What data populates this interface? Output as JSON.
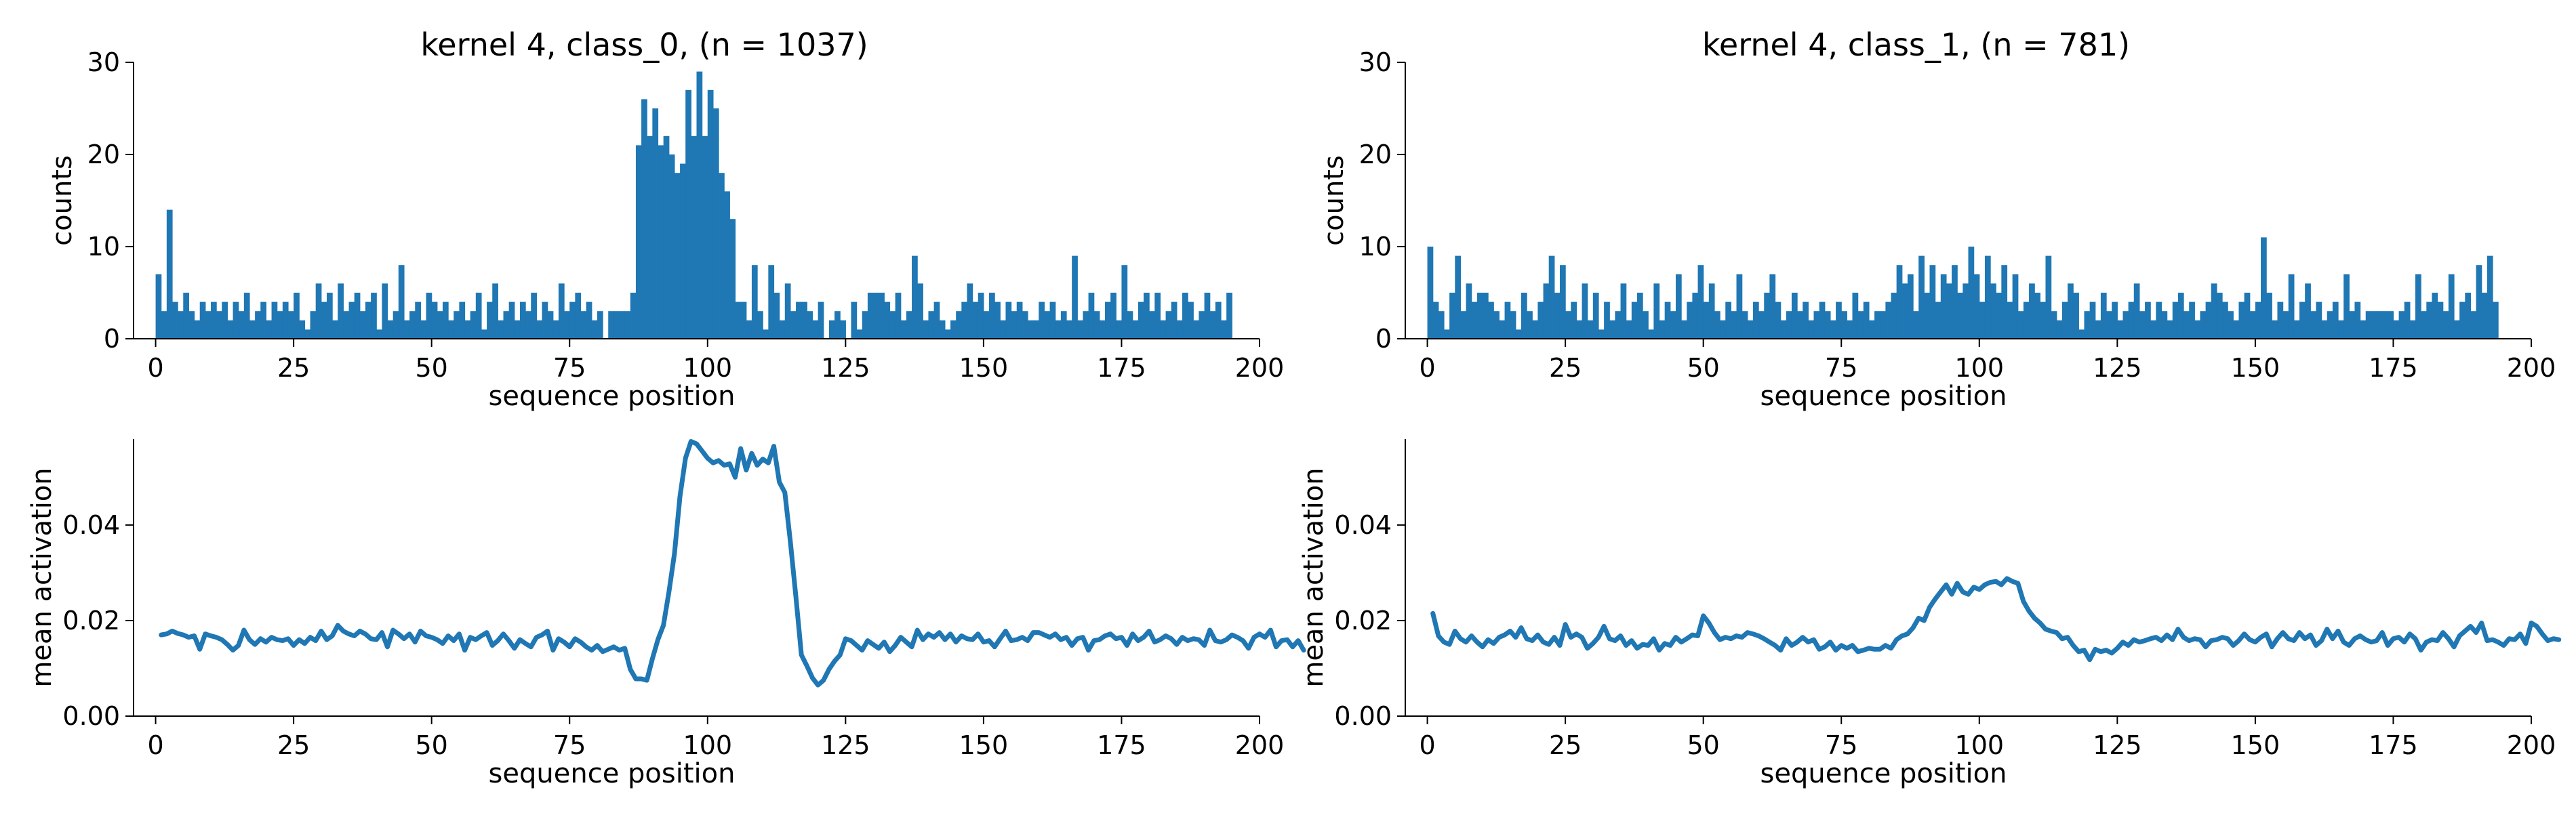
{
  "chart_data": [
    {
      "type": "bar",
      "title": "kernel 4, class_0, (n = 1037)",
      "xlabel": "sequence position",
      "ylabel": "counts",
      "xlim": [
        -4,
        200
      ],
      "ylim": [
        0,
        30
      ],
      "xticks": [
        "0",
        "25",
        "50",
        "75",
        "100",
        "125",
        "150",
        "175",
        "200"
      ],
      "yticks": [
        "0",
        "10",
        "20",
        "30"
      ],
      "grid": false,
      "color": "#1f77b4",
      "bin_start": 0,
      "bin_width": 1,
      "values": [
        7,
        3,
        14,
        4,
        3,
        5,
        3,
        2,
        4,
        3,
        4,
        3,
        4,
        2,
        4,
        3,
        5,
        2,
        3,
        4,
        2,
        4,
        3,
        4,
        3,
        5,
        2,
        1,
        3,
        6,
        4,
        5,
        2,
        6,
        3,
        4,
        5,
        3,
        4,
        5,
        1,
        6,
        2,
        3,
        8,
        2,
        3,
        4,
        2,
        5,
        4,
        3,
        4,
        2,
        3,
        4,
        2,
        3,
        5,
        1,
        4,
        6,
        2,
        3,
        4,
        2,
        4,
        3,
        5,
        2,
        4,
        3,
        2,
        6,
        3,
        4,
        5,
        3,
        4,
        2,
        3,
        0,
        3,
        3,
        3,
        3,
        5,
        21,
        26,
        22,
        25,
        21,
        22,
        20,
        18,
        19,
        27,
        22,
        29,
        22,
        27,
        25,
        18,
        16,
        13,
        4,
        4,
        2,
        8,
        3,
        1,
        8,
        5,
        2,
        6,
        3,
        4,
        4,
        3,
        2,
        4,
        0,
        2,
        3,
        2,
        0,
        4,
        1,
        3,
        5,
        5,
        5,
        4,
        3,
        5,
        2,
        3,
        9,
        6,
        2,
        3,
        4,
        2,
        1,
        2,
        3,
        4,
        6,
        4,
        5,
        3,
        5,
        4,
        2,
        4,
        3,
        4,
        3,
        2,
        2,
        4,
        3,
        4,
        2,
        3,
        2,
        9,
        2,
        3,
        5,
        3,
        2,
        4,
        5,
        2,
        8,
        3,
        2,
        4,
        5,
        3,
        5,
        2,
        3,
        4,
        2,
        5,
        4,
        2,
        3,
        5,
        3,
        4,
        2,
        5
      ]
    },
    {
      "type": "bar",
      "title": "kernel 4, class_1, (n = 781)",
      "xlabel": "sequence position",
      "ylabel": "counts",
      "xlim": [
        -4,
        200
      ],
      "ylim": [
        0,
        30
      ],
      "xticks": [
        "0",
        "25",
        "50",
        "75",
        "100",
        "125",
        "150",
        "175",
        "200"
      ],
      "yticks": [
        "0",
        "10",
        "20",
        "30"
      ],
      "grid": false,
      "color": "#1f77b4",
      "bin_start": 0,
      "bin_width": 1,
      "values": [
        10,
        4,
        3,
        1,
        5,
        9,
        3,
        6,
        4,
        5,
        5,
        4,
        3,
        2,
        4,
        3,
        1,
        5,
        3,
        2,
        4,
        6,
        9,
        5,
        8,
        3,
        4,
        2,
        6,
        2,
        5,
        1,
        4,
        2,
        3,
        6,
        2,
        4,
        5,
        3,
        1,
        6,
        2,
        4,
        3,
        7,
        2,
        4,
        5,
        8,
        4,
        6,
        3,
        2,
        4,
        3,
        7,
        3,
        2,
        4,
        3,
        5,
        7,
        4,
        2,
        3,
        5,
        3,
        4,
        2,
        3,
        4,
        3,
        2,
        4,
        3,
        2,
        5,
        3,
        4,
        2,
        3,
        3,
        4,
        5,
        8,
        6,
        7,
        3,
        9,
        5,
        8,
        4,
        7,
        6,
        8,
        5,
        6,
        10,
        7,
        4,
        9,
        6,
        5,
        8,
        4,
        7,
        3,
        4,
        6,
        5,
        4,
        9,
        3,
        2,
        4,
        6,
        5,
        1,
        3,
        4,
        2,
        5,
        3,
        4,
        2,
        3,
        4,
        6,
        3,
        4,
        2,
        4,
        3,
        2,
        4,
        5,
        3,
        4,
        2,
        3,
        4,
        6,
        5,
        4,
        3,
        2,
        4,
        5,
        3,
        4,
        11,
        5,
        2,
        4,
        3,
        7,
        2,
        4,
        6,
        3,
        4,
        2,
        3,
        4,
        2,
        7,
        3,
        4,
        2,
        3,
        3,
        3,
        3,
        3,
        2,
        3,
        4,
        2,
        7,
        3,
        4,
        5,
        4,
        3,
        7,
        2,
        4,
        5,
        3,
        8,
        5,
        9,
        4
      ]
    },
    {
      "type": "line",
      "title": "",
      "xlabel": "sequence position",
      "ylabel": "mean activation",
      "xlim": [
        -4,
        200
      ],
      "ylim": [
        0,
        0.058
      ],
      "xticks": [
        "0",
        "25",
        "50",
        "75",
        "100",
        "125",
        "150",
        "175",
        "200"
      ],
      "yticks": [
        "0.00",
        "0.02",
        "0.04"
      ],
      "grid": false,
      "color": "#1f77b4",
      "x_start": 1,
      "x_step": 1,
      "values": [
        0.017,
        0.0172,
        0.0178,
        0.0173,
        0.017,
        0.0165,
        0.0168,
        0.014,
        0.0172,
        0.0168,
        0.0165,
        0.016,
        0.015,
        0.0138,
        0.0148,
        0.018,
        0.016,
        0.015,
        0.0162,
        0.0155,
        0.0165,
        0.016,
        0.0158,
        0.0162,
        0.0148,
        0.016,
        0.0152,
        0.0165,
        0.0158,
        0.0178,
        0.016,
        0.0168,
        0.019,
        0.0178,
        0.0172,
        0.0168,
        0.0178,
        0.0172,
        0.0162,
        0.016,
        0.0175,
        0.0145,
        0.018,
        0.0172,
        0.0162,
        0.0172,
        0.0155,
        0.0178,
        0.0168,
        0.0165,
        0.016,
        0.0152,
        0.0168,
        0.0158,
        0.0172,
        0.0138,
        0.0165,
        0.016,
        0.0168,
        0.0175,
        0.0148,
        0.0158,
        0.0172,
        0.0158,
        0.0142,
        0.016,
        0.0152,
        0.0145,
        0.0165,
        0.017,
        0.0178,
        0.0138,
        0.0162,
        0.0155,
        0.0145,
        0.0162,
        0.0155,
        0.0145,
        0.0138,
        0.0148,
        0.0135,
        0.014,
        0.0145,
        0.0138,
        0.0142,
        0.0098,
        0.0078,
        0.0078,
        0.0075,
        0.012,
        0.016,
        0.019,
        0.026,
        0.034,
        0.046,
        0.054,
        0.0575,
        0.057,
        0.0555,
        0.054,
        0.053,
        0.0535,
        0.0525,
        0.0528,
        0.05,
        0.056,
        0.0515,
        0.055,
        0.0525,
        0.0538,
        0.053,
        0.0565,
        0.049,
        0.0468,
        0.0365,
        0.025,
        0.0128,
        0.0105,
        0.008,
        0.0065,
        0.0075,
        0.0098,
        0.0115,
        0.0128,
        0.0162,
        0.0158,
        0.0148,
        0.0138,
        0.0158,
        0.015,
        0.0142,
        0.0155,
        0.0135,
        0.0148,
        0.0165,
        0.0155,
        0.0145,
        0.018,
        0.016,
        0.0172,
        0.0165,
        0.0175,
        0.016,
        0.0172,
        0.0155,
        0.0168,
        0.0162,
        0.016,
        0.0172,
        0.0155,
        0.0158,
        0.0145,
        0.0162,
        0.0178,
        0.0158,
        0.016,
        0.0165,
        0.0158,
        0.0175,
        0.0175,
        0.017,
        0.0165,
        0.0172,
        0.016,
        0.0165,
        0.0148,
        0.0162,
        0.0165,
        0.0138,
        0.0158,
        0.016,
        0.0168,
        0.0172,
        0.0162,
        0.0165,
        0.0148,
        0.0172,
        0.0158,
        0.0165,
        0.0178,
        0.0155,
        0.016,
        0.0168,
        0.0162,
        0.015,
        0.0165,
        0.0158,
        0.0162,
        0.016,
        0.0148,
        0.018,
        0.0158,
        0.0155,
        0.016,
        0.017,
        0.0165,
        0.0158,
        0.0142,
        0.0165,
        0.0172,
        0.0165,
        0.018,
        0.0145,
        0.0158,
        0.016,
        0.0145,
        0.0158,
        0.0138
      ]
    },
    {
      "type": "line",
      "title": "",
      "xlabel": "sequence position",
      "ylabel": "mean activation",
      "xlim": [
        -4,
        200
      ],
      "ylim": [
        0,
        0.058
      ],
      "xticks": [
        "0",
        "25",
        "50",
        "75",
        "100",
        "125",
        "150",
        "175",
        "200"
      ],
      "yticks": [
        "0.00",
        "0.02",
        "0.04"
      ],
      "grid": false,
      "color": "#1f77b4",
      "x_start": 1,
      "x_step": 1,
      "values": [
        0.0215,
        0.0168,
        0.0155,
        0.015,
        0.0178,
        0.0162,
        0.0155,
        0.0168,
        0.0155,
        0.0145,
        0.016,
        0.0152,
        0.0165,
        0.017,
        0.0178,
        0.0165,
        0.0185,
        0.0162,
        0.0158,
        0.017,
        0.0155,
        0.015,
        0.0165,
        0.0148,
        0.0192,
        0.0165,
        0.0172,
        0.0165,
        0.0142,
        0.0152,
        0.0165,
        0.0188,
        0.0162,
        0.0158,
        0.0168,
        0.0148,
        0.0158,
        0.0142,
        0.015,
        0.0148,
        0.0162,
        0.0138,
        0.0152,
        0.0148,
        0.0165,
        0.0155,
        0.0162,
        0.017,
        0.0168,
        0.021,
        0.0195,
        0.0175,
        0.016,
        0.0165,
        0.0162,
        0.0168,
        0.0165,
        0.0175,
        0.0172,
        0.0168,
        0.0162,
        0.0155,
        0.0148,
        0.0138,
        0.0162,
        0.0148,
        0.0155,
        0.0165,
        0.0155,
        0.016,
        0.014,
        0.0145,
        0.0155,
        0.0138,
        0.0148,
        0.0142,
        0.0148,
        0.0135,
        0.0138,
        0.0142,
        0.014,
        0.014,
        0.0148,
        0.0142,
        0.016,
        0.0168,
        0.0172,
        0.0185,
        0.0205,
        0.02,
        0.0228,
        0.0245,
        0.026,
        0.0275,
        0.0255,
        0.0278,
        0.026,
        0.0255,
        0.027,
        0.0265,
        0.0275,
        0.028,
        0.0282,
        0.0275,
        0.0288,
        0.0282,
        0.0278,
        0.024,
        0.022,
        0.0205,
        0.0195,
        0.0182,
        0.0178,
        0.0175,
        0.0162,
        0.0165,
        0.0148,
        0.0135,
        0.0138,
        0.0118,
        0.014,
        0.0135,
        0.0138,
        0.0132,
        0.0142,
        0.0155,
        0.0148,
        0.016,
        0.0155,
        0.0158,
        0.0162,
        0.0165,
        0.0158,
        0.017,
        0.016,
        0.0182,
        0.0165,
        0.0158,
        0.0162,
        0.016,
        0.0145,
        0.0158,
        0.016,
        0.0165,
        0.0162,
        0.0148,
        0.0158,
        0.0172,
        0.016,
        0.0155,
        0.0165,
        0.0172,
        0.0145,
        0.0162,
        0.0175,
        0.0162,
        0.0158,
        0.0175,
        0.0162,
        0.017,
        0.0148,
        0.0158,
        0.0182,
        0.0162,
        0.0178,
        0.0155,
        0.0148,
        0.0162,
        0.0168,
        0.016,
        0.0155,
        0.0158,
        0.0175,
        0.0148,
        0.0162,
        0.0165,
        0.0155,
        0.0172,
        0.0162,
        0.0138,
        0.0155,
        0.016,
        0.0158,
        0.0175,
        0.0162,
        0.0145,
        0.0168,
        0.0178,
        0.0188,
        0.0175,
        0.0195,
        0.0158,
        0.016,
        0.0155,
        0.0148,
        0.0162,
        0.016,
        0.0172,
        0.0152,
        0.0195,
        0.0188,
        0.0172,
        0.0158,
        0.0162,
        0.016
      ]
    }
  ]
}
